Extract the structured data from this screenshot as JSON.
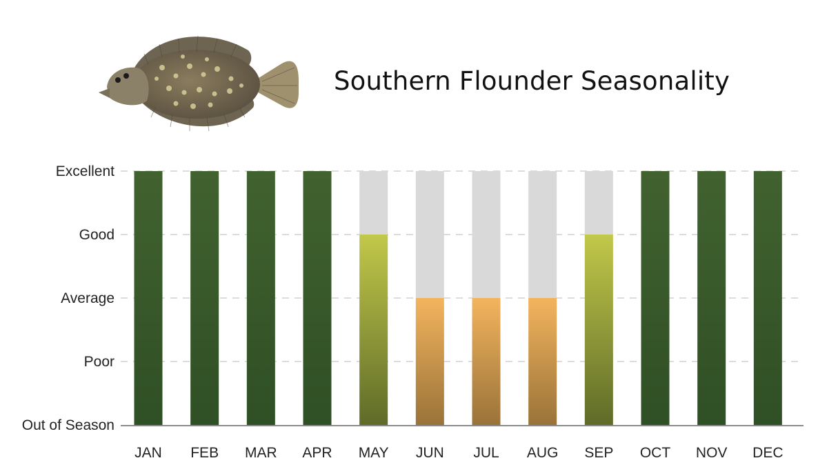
{
  "title": "Southern Flounder Seasonality",
  "fish_image": "southern-flounder-illustration",
  "chart_data": {
    "type": "bar",
    "title": "Southern Flounder Seasonality",
    "xlabel": "",
    "ylabel": "",
    "categories": [
      "JAN",
      "FEB",
      "MAR",
      "APR",
      "MAY",
      "JUN",
      "JUL",
      "AUG",
      "SEP",
      "OCT",
      "NOV",
      "DEC"
    ],
    "y_levels": [
      "Out of Season",
      "Poor",
      "Average",
      "Good",
      "Excellent"
    ],
    "values": [
      4,
      4,
      4,
      4,
      3,
      2,
      2,
      2,
      3,
      4,
      4,
      4
    ],
    "value_labels": [
      "Excellent",
      "Excellent",
      "Excellent",
      "Excellent",
      "Good",
      "Average",
      "Average",
      "Average",
      "Good",
      "Excellent",
      "Excellent",
      "Excellent"
    ],
    "ylim": [
      0,
      4
    ],
    "grid": true,
    "grid_style": "dashed",
    "background_bar_color": "#d9d9d9",
    "level_colors": {
      "Excellent": {
        "top": "#41622f",
        "bottom": "#2f4f25"
      },
      "Good": {
        "top": "#c2c84a",
        "bottom": "#5f6b28"
      },
      "Average": {
        "top": "#f3b45e",
        "bottom": "#9a7339"
      }
    }
  }
}
